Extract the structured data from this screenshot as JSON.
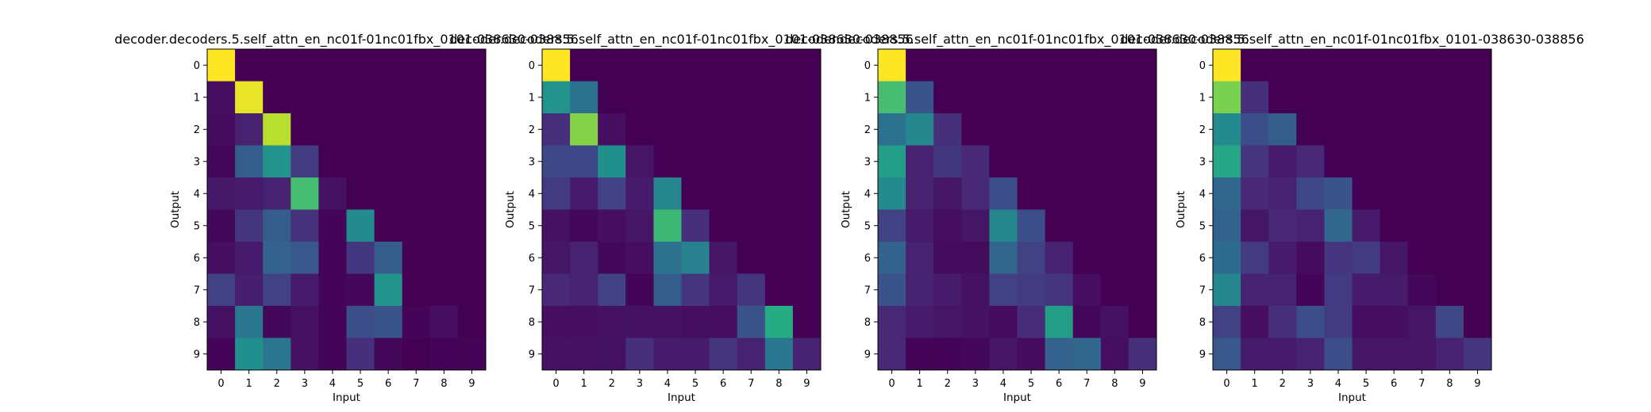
{
  "chart_data": [
    {
      "type": "heatmap",
      "title": "decoder.decoders.5.self_attn_en_nc01f-01nc01fbx_0101-038630-038856",
      "xlabel": "Input",
      "ylabel": "Output",
      "x_ticks": [
        "0",
        "1",
        "2",
        "3",
        "4",
        "5",
        "6",
        "7",
        "8",
        "9"
      ],
      "y_ticks": [
        "0",
        "1",
        "2",
        "3",
        "4",
        "5",
        "6",
        "7",
        "8",
        "9"
      ],
      "colormap": "viridis",
      "zlim": [
        0,
        1
      ],
      "values": [
        [
          1.0,
          0,
          0,
          0,
          0,
          0,
          0,
          0,
          0,
          0
        ],
        [
          0.04,
          0.97,
          0,
          0,
          0,
          0,
          0,
          0,
          0,
          0
        ],
        [
          0.03,
          0.1,
          0.9,
          0,
          0,
          0,
          0,
          0,
          0,
          0
        ],
        [
          0.02,
          0.3,
          0.52,
          0.18,
          0,
          0,
          0,
          0,
          0,
          0
        ],
        [
          0.07,
          0.08,
          0.1,
          0.7,
          0.05,
          0,
          0,
          0,
          0,
          0
        ],
        [
          0.02,
          0.16,
          0.3,
          0.15,
          0.01,
          0.48,
          0,
          0,
          0,
          0
        ],
        [
          0.04,
          0.08,
          0.32,
          0.28,
          0.01,
          0.17,
          0.3,
          0,
          0,
          0
        ],
        [
          0.2,
          0.09,
          0.2,
          0.08,
          0.01,
          0.02,
          0.52,
          0,
          0,
          0
        ],
        [
          0.05,
          0.4,
          0.02,
          0.05,
          0.01,
          0.24,
          0.26,
          0.01,
          0.04,
          0
        ],
        [
          0.01,
          0.5,
          0.4,
          0.05,
          0.01,
          0.14,
          0.02,
          0,
          0.01,
          0.01
        ]
      ]
    },
    {
      "type": "heatmap",
      "title": "decoder.decoders.5.self_attn_en_nc01f-01nc01fbx_0101-038630-038856",
      "xlabel": "Input",
      "ylabel": "Output",
      "x_ticks": [
        "0",
        "1",
        "2",
        "3",
        "4",
        "5",
        "6",
        "7",
        "8",
        "9"
      ],
      "y_ticks": [
        "0",
        "1",
        "2",
        "3",
        "4",
        "5",
        "6",
        "7",
        "8",
        "9"
      ],
      "colormap": "viridis",
      "zlim": [
        0,
        1
      ],
      "values": [
        [
          1.0,
          0,
          0,
          0,
          0,
          0,
          0,
          0,
          0,
          0
        ],
        [
          0.52,
          0.38,
          0,
          0,
          0,
          0,
          0,
          0,
          0,
          0
        ],
        [
          0.14,
          0.82,
          0.04,
          0,
          0,
          0,
          0,
          0,
          0,
          0
        ],
        [
          0.22,
          0.22,
          0.5,
          0.06,
          0,
          0,
          0,
          0,
          0,
          0
        ],
        [
          0.18,
          0.08,
          0.2,
          0.08,
          0.46,
          0,
          0,
          0,
          0,
          0
        ],
        [
          0.05,
          0.02,
          0.04,
          0.06,
          0.68,
          0.14,
          0,
          0,
          0,
          0
        ],
        [
          0.06,
          0.1,
          0.02,
          0.04,
          0.38,
          0.44,
          0.06,
          0,
          0,
          0
        ],
        [
          0.12,
          0.1,
          0.2,
          0.01,
          0.3,
          0.16,
          0.08,
          0.16,
          0,
          0
        ],
        [
          0.04,
          0.04,
          0.05,
          0.05,
          0.05,
          0.04,
          0.04,
          0.26,
          0.62,
          0
        ],
        [
          0.05,
          0.05,
          0.05,
          0.14,
          0.08,
          0.08,
          0.16,
          0.1,
          0.4,
          0.1
        ]
      ]
    },
    {
      "type": "heatmap",
      "title": "decoder.decoders.5.self_attn_en_nc01f-01nc01fbx_0101-038630-038856",
      "xlabel": "Input",
      "ylabel": "Output",
      "x_ticks": [
        "0",
        "1",
        "2",
        "3",
        "4",
        "5",
        "6",
        "7",
        "8",
        "9"
      ],
      "y_ticks": [
        "0",
        "1",
        "2",
        "3",
        "4",
        "5",
        "6",
        "7",
        "8",
        "9"
      ],
      "colormap": "viridis",
      "zlim": [
        0,
        1
      ],
      "values": [
        [
          1.0,
          0,
          0,
          0,
          0,
          0,
          0,
          0,
          0,
          0
        ],
        [
          0.7,
          0.26,
          0,
          0,
          0,
          0,
          0,
          0,
          0,
          0
        ],
        [
          0.38,
          0.46,
          0.14,
          0,
          0,
          0,
          0,
          0,
          0,
          0
        ],
        [
          0.56,
          0.1,
          0.17,
          0.12,
          0,
          0,
          0,
          0,
          0,
          0
        ],
        [
          0.48,
          0.1,
          0.06,
          0.12,
          0.24,
          0,
          0,
          0,
          0,
          0
        ],
        [
          0.2,
          0.08,
          0.04,
          0.06,
          0.46,
          0.24,
          0,
          0,
          0,
          0
        ],
        [
          0.32,
          0.1,
          0.03,
          0.03,
          0.34,
          0.2,
          0.1,
          0,
          0,
          0
        ],
        [
          0.26,
          0.1,
          0.08,
          0.05,
          0.2,
          0.18,
          0.16,
          0.04,
          0,
          0
        ],
        [
          0.12,
          0.08,
          0.06,
          0.05,
          0.03,
          0.13,
          0.56,
          0.02,
          0.05,
          0
        ],
        [
          0.12,
          0.01,
          0.01,
          0.02,
          0.06,
          0.03,
          0.32,
          0.34,
          0.04,
          0.14
        ]
      ]
    },
    {
      "type": "heatmap",
      "title": "decoder.decoders.5.self_attn_en_nc01f-01nc01fbx_0101-038630-038856",
      "xlabel": "Input",
      "ylabel": "Output",
      "x_ticks": [
        "0",
        "1",
        "2",
        "3",
        "4",
        "5",
        "6",
        "7",
        "8",
        "9"
      ],
      "y_ticks": [
        "0",
        "1",
        "2",
        "3",
        "4",
        "5",
        "6",
        "7",
        "8",
        "9"
      ],
      "colormap": "viridis",
      "zlim": [
        0,
        1
      ],
      "values": [
        [
          1.0,
          0,
          0,
          0,
          0,
          0,
          0,
          0,
          0,
          0
        ],
        [
          0.8,
          0.14,
          0,
          0,
          0,
          0,
          0,
          0,
          0,
          0
        ],
        [
          0.48,
          0.24,
          0.3,
          0,
          0,
          0,
          0,
          0,
          0,
          0
        ],
        [
          0.6,
          0.16,
          0.08,
          0.12,
          0,
          0,
          0,
          0,
          0,
          0
        ],
        [
          0.34,
          0.12,
          0.1,
          0.22,
          0.26,
          0,
          0,
          0,
          0,
          0
        ],
        [
          0.32,
          0.06,
          0.12,
          0.1,
          0.34,
          0.08,
          0,
          0,
          0,
          0
        ],
        [
          0.36,
          0.18,
          0.08,
          0.03,
          0.16,
          0.18,
          0.06,
          0,
          0,
          0
        ],
        [
          0.46,
          0.1,
          0.1,
          0.01,
          0.18,
          0.08,
          0.08,
          0.02,
          0,
          0
        ],
        [
          0.2,
          0.04,
          0.14,
          0.24,
          0.18,
          0.04,
          0.04,
          0.06,
          0.22,
          0
        ],
        [
          0.28,
          0.08,
          0.08,
          0.1,
          0.24,
          0.06,
          0.06,
          0.06,
          0.1,
          0.16
        ]
      ]
    }
  ]
}
